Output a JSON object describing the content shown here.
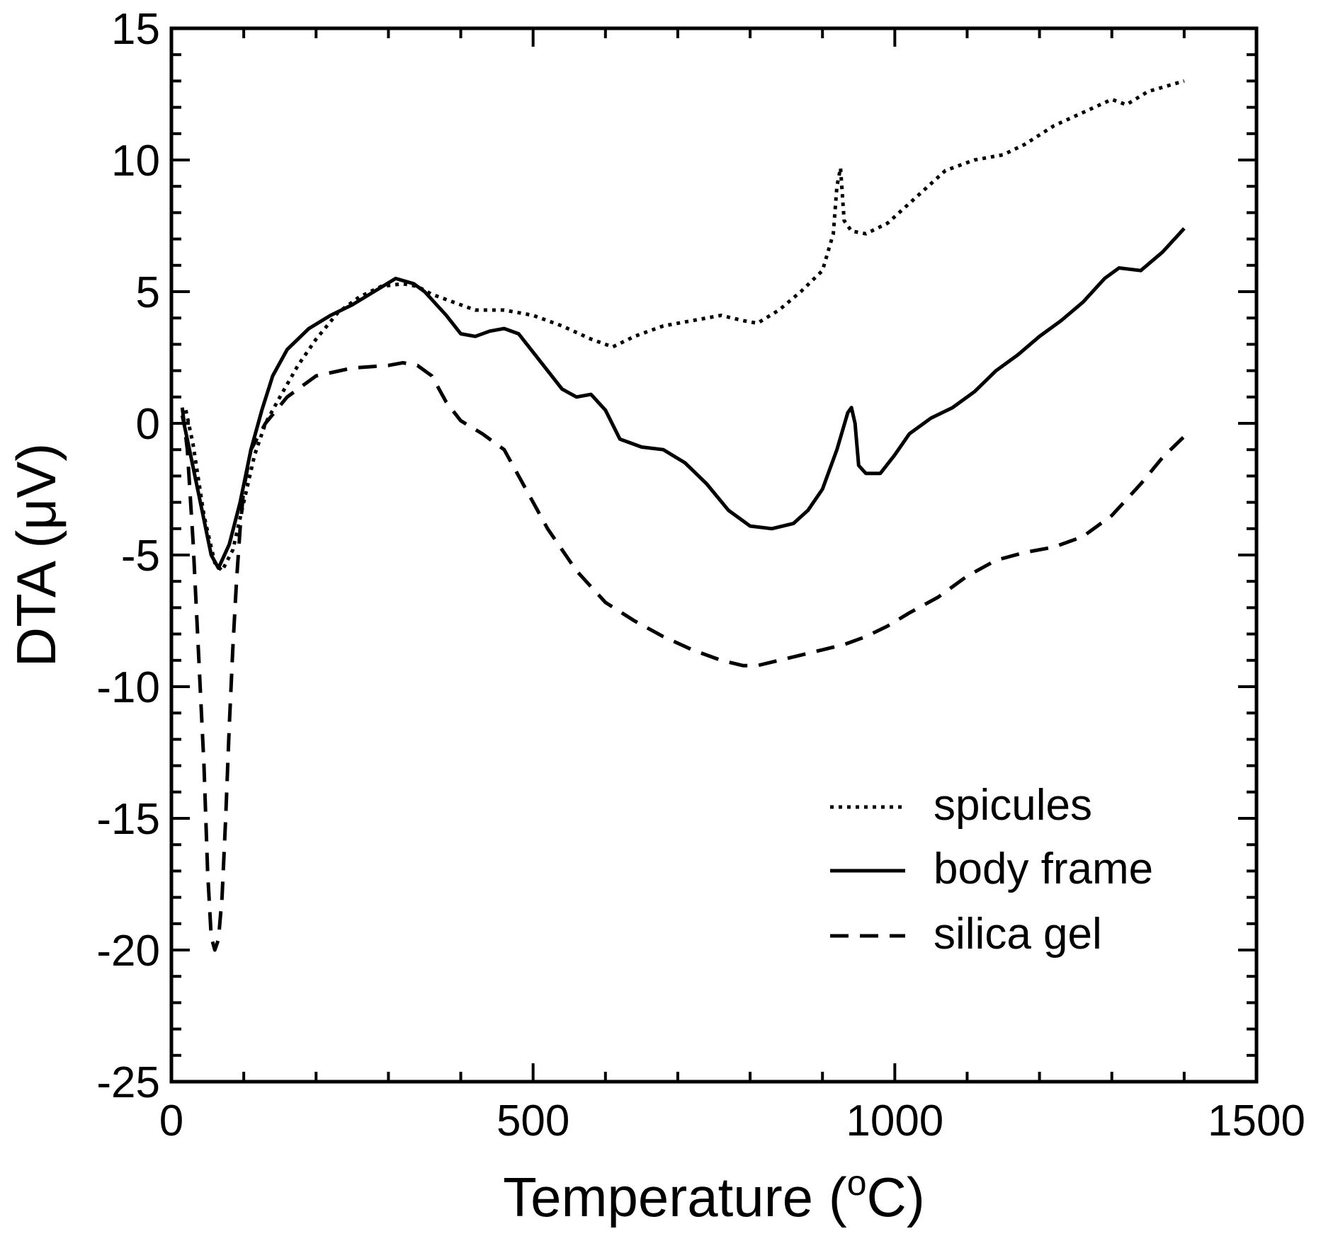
{
  "chart_data": {
    "type": "line",
    "title": "",
    "xlabel_main": "Temperature (",
    "xlabel_sup": "o",
    "xlabel_end": "C)",
    "ylabel": "DTA (μV)",
    "xlim": [
      0,
      1500
    ],
    "ylim": [
      -25,
      15
    ],
    "x_major_ticks": [
      0,
      500,
      1000,
      1500
    ],
    "x_minor_step": 100,
    "y_major_ticks": [
      -25,
      -20,
      -15,
      -10,
      -5,
      0,
      5,
      10,
      15
    ],
    "y_minor_step": 1,
    "x_tick_labels": [
      "0",
      "500",
      "1000",
      "1500"
    ],
    "y_tick_labels": [
      "-25",
      "-20",
      "-15",
      "-10",
      "-5",
      "0",
      "5",
      "10",
      "15"
    ],
    "grid": false,
    "legend_position": "bottom-right",
    "series": [
      {
        "name": "spicules",
        "style": "dotted",
        "x": [
          20,
          30,
          45,
          60,
          70,
          85,
          100,
          115,
          130,
          150,
          175,
          200,
          230,
          260,
          290,
          320,
          340,
          360,
          390,
          420,
          460,
          500,
          540,
          580,
          610,
          640,
          680,
          720,
          760,
          790,
          810,
          840,
          870,
          900,
          915,
          920,
          925,
          930,
          940,
          960,
          990,
          1030,
          1070,
          1110,
          1150,
          1180,
          1220,
          1260,
          1300,
          1320,
          1350,
          1400
        ],
        "y": [
          0.5,
          -0.8,
          -3.5,
          -5.3,
          -5.6,
          -4.8,
          -3.0,
          -1.2,
          0.0,
          1.0,
          2.2,
          3.2,
          4.2,
          4.8,
          5.2,
          5.3,
          5.2,
          4.9,
          4.6,
          4.3,
          4.3,
          4.1,
          3.7,
          3.2,
          2.9,
          3.3,
          3.7,
          3.9,
          4.1,
          3.9,
          3.8,
          4.3,
          5.0,
          5.8,
          7.2,
          9.0,
          9.7,
          7.7,
          7.3,
          7.2,
          7.6,
          8.6,
          9.6,
          10.0,
          10.2,
          10.6,
          11.3,
          11.8,
          12.3,
          12.1,
          12.6,
          13.0
        ]
      },
      {
        "name": "body frame",
        "style": "solid",
        "x": [
          15,
          25,
          40,
          55,
          65,
          80,
          95,
          110,
          125,
          140,
          160,
          190,
          220,
          250,
          280,
          310,
          335,
          350,
          380,
          400,
          420,
          440,
          460,
          480,
          500,
          520,
          540,
          560,
          580,
          600,
          620,
          650,
          680,
          710,
          740,
          770,
          800,
          830,
          860,
          880,
          900,
          920,
          935,
          940,
          945,
          950,
          960,
          980,
          1000,
          1020,
          1050,
          1080,
          1110,
          1140,
          1170,
          1200,
          1230,
          1260,
          1290,
          1310,
          1340,
          1370,
          1400
        ],
        "y": [
          0.3,
          -1.0,
          -3.0,
          -5.0,
          -5.5,
          -4.6,
          -3.0,
          -1.0,
          0.5,
          1.8,
          2.8,
          3.6,
          4.1,
          4.5,
          5.0,
          5.5,
          5.3,
          5.0,
          4.1,
          3.4,
          3.3,
          3.5,
          3.6,
          3.4,
          2.7,
          2.0,
          1.3,
          1.0,
          1.1,
          0.5,
          -0.6,
          -0.9,
          -1.0,
          -1.5,
          -2.3,
          -3.3,
          -3.9,
          -4.0,
          -3.8,
          -3.3,
          -2.5,
          -1.0,
          0.4,
          0.6,
          0.0,
          -1.6,
          -1.9,
          -1.9,
          -1.2,
          -0.4,
          0.2,
          0.6,
          1.2,
          2.0,
          2.6,
          3.3,
          3.9,
          4.6,
          5.5,
          5.9,
          5.8,
          6.5,
          7.4
        ]
      },
      {
        "name": "silica gel",
        "style": "dashed",
        "x": [
          15,
          22,
          30,
          38,
          45,
          50,
          55,
          60,
          65,
          70,
          75,
          80,
          85,
          90,
          95,
          100,
          110,
          130,
          160,
          200,
          250,
          300,
          320,
          340,
          360,
          380,
          400,
          430,
          460,
          490,
          520,
          560,
          600,
          640,
          680,
          720,
          760,
          790,
          810,
          840,
          870,
          900,
          930,
          960,
          990,
          1020,
          1060,
          1100,
          1140,
          1180,
          1220,
          1260,
          1300,
          1340,
          1370,
          1400
        ],
        "y": [
          0.6,
          -1.0,
          -4.5,
          -9.0,
          -13.0,
          -17.0,
          -19.5,
          -20.0,
          -19.6,
          -18.0,
          -15.0,
          -11.5,
          -8.5,
          -6.0,
          -4.0,
          -2.5,
          -1.0,
          0.0,
          1.0,
          1.8,
          2.1,
          2.2,
          2.3,
          2.2,
          1.8,
          0.8,
          0.1,
          -0.4,
          -1.0,
          -2.5,
          -4.0,
          -5.6,
          -6.8,
          -7.5,
          -8.1,
          -8.6,
          -9.0,
          -9.2,
          -9.2,
          -9.0,
          -8.8,
          -8.6,
          -8.4,
          -8.1,
          -7.7,
          -7.2,
          -6.6,
          -5.8,
          -5.2,
          -4.9,
          -4.7,
          -4.3,
          -3.5,
          -2.3,
          -1.3,
          -0.5
        ]
      }
    ]
  }
}
